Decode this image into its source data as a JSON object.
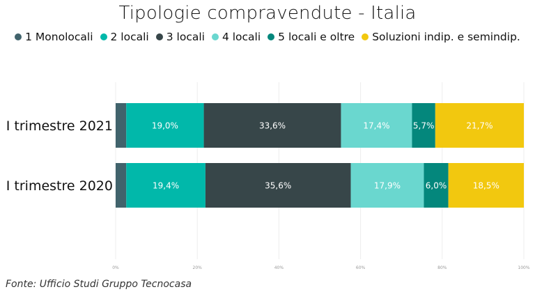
{
  "chart_data": {
    "type": "bar",
    "orientation": "horizontal",
    "stacked": true,
    "normalized": true,
    "title": "Tipologie compravendute - Italia",
    "categories": [
      "I trimestre 2021",
      "I trimestre 2020"
    ],
    "series": [
      {
        "name": "1 Monolocali",
        "color": "#41636c",
        "values": [
          2.6,
          2.6
        ],
        "labels": [
          "",
          ""
        ]
      },
      {
        "name": "2 locali",
        "color": "#01b8aa",
        "values": [
          19.0,
          19.4
        ],
        "labels": [
          "19,0%",
          "19,4%"
        ]
      },
      {
        "name": "3 locali",
        "color": "#374649",
        "values": [
          33.6,
          35.6
        ],
        "labels": [
          "33,6%",
          "35,6%"
        ]
      },
      {
        "name": "4 locali",
        "color": "#6ad7cf",
        "values": [
          17.4,
          17.9
        ],
        "labels": [
          "17,4%",
          "17,9%"
        ]
      },
      {
        "name": "5 locali e oltre",
        "color": "#04877c",
        "values": [
          5.7,
          6.0
        ],
        "labels": [
          "5,7%",
          "6,0%"
        ]
      },
      {
        "name": "Soluzioni indip. e semindip.",
        "color": "#f2c80f",
        "values": [
          21.7,
          18.5
        ],
        "labels": [
          "21,7%",
          "18,5%"
        ]
      }
    ],
    "xlim": [
      0,
      100
    ],
    "x_ticks": [
      "0%",
      "20%",
      "40%",
      "60%",
      "80%",
      "100%"
    ],
    "grid": true,
    "legend_position": "top"
  },
  "source_note": "Fonte: Ufficio Studi Gruppo Tecnocasa"
}
